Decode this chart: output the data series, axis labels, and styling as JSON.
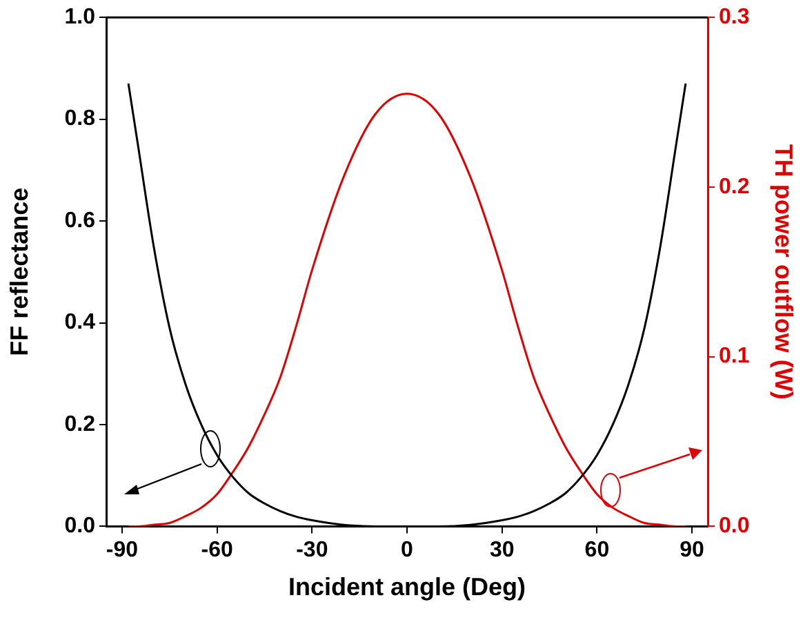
{
  "chart_data": {
    "type": "line",
    "xlabel": "Incident angle (Deg)",
    "ylabel": "FF reflectance",
    "y2label": "TH power outflow (W)",
    "x": [
      -88,
      -85,
      -80,
      -75,
      -70,
      -65,
      -60,
      -55,
      -50,
      -45,
      -40,
      -35,
      -30,
      -20,
      -10,
      0,
      10,
      20,
      30,
      35,
      40,
      45,
      50,
      55,
      60,
      65,
      70,
      75,
      80,
      85,
      88
    ],
    "series": [
      {
        "color": "#000000",
        "values": [
          0.87,
          0.75,
          0.55,
          0.39,
          0.28,
          0.2,
          0.14,
          0.097,
          0.065,
          0.045,
          0.03,
          0.019,
          0.012,
          0.003,
          0,
          0,
          0,
          0.003,
          0.012,
          0.019,
          0.03,
          0.045,
          0.065,
          0.097,
          0.14,
          0.2,
          0.28,
          0.39,
          0.55,
          0.75,
          0.87
        ]
      },
      {
        "color": "#e00000",
        "axis": "y2",
        "values": [
          0,
          0,
          0.001,
          0.002,
          0.006,
          0.011,
          0.019,
          0.032,
          0.047,
          0.066,
          0.088,
          0.118,
          0.151,
          0.206,
          0.243,
          0.255,
          0.243,
          0.206,
          0.151,
          0.118,
          0.088,
          0.066,
          0.047,
          0.032,
          0.019,
          0.011,
          0.006,
          0.002,
          0.001,
          0,
          0
        ]
      }
    ],
    "xlim": [
      -95,
      95
    ],
    "xticks": [
      -90,
      -60,
      -30,
      0,
      30,
      60,
      90
    ],
    "ylim": [
      0,
      1.0
    ],
    "yticks": [
      {
        "value": 0,
        "label": "0.0"
      },
      {
        "value": 0.2,
        "label": "0.2"
      },
      {
        "value": 0.4,
        "label": "0.4"
      },
      {
        "value": 0.6,
        "label": "0.6"
      },
      {
        "value": 0.8,
        "label": "0.8"
      },
      {
        "value": 1.0,
        "label": "1.0"
      }
    ],
    "y2lim": [
      0,
      0.3
    ],
    "y2ticks": [
      {
        "value": 0,
        "label": "0.0"
      },
      0.1,
      0.2,
      0.3
    ],
    "grid": false,
    "legend": false,
    "marker": "none",
    "line_style": "solid"
  }
}
